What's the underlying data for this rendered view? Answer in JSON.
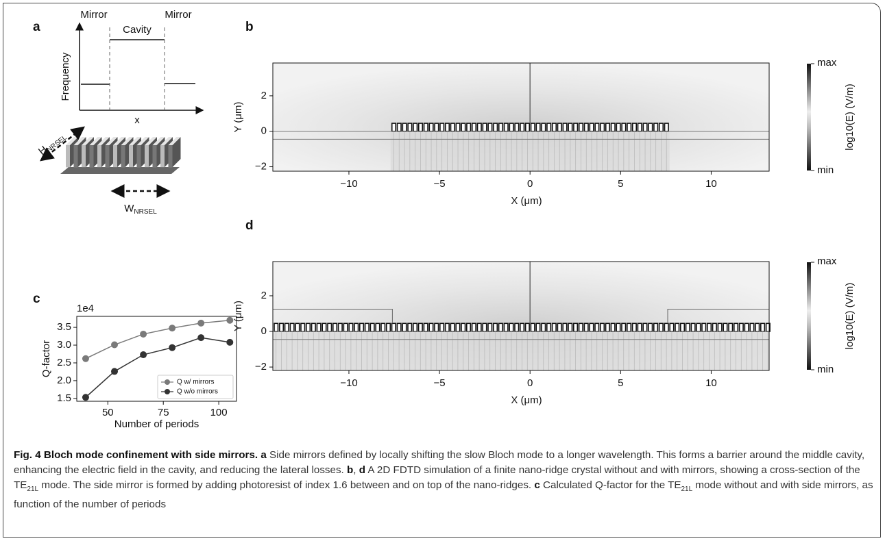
{
  "panel_a": {
    "letter": "a",
    "mirror_left": "Mirror",
    "mirror_right": "Mirror",
    "cavity": "Cavity",
    "y_label": "Frequency",
    "x_label": "x",
    "height_label": "H",
    "height_sub": "NRSEL",
    "width_label": "W",
    "width_sub": "NRSEL"
  },
  "panel_b": {
    "letter": "b",
    "x_label": "X (μm)",
    "y_label": "Y (μm)",
    "xlim": [
      -14.2,
      13.2
    ],
    "xticks": [
      {
        "value": -10,
        "label": "−10"
      },
      {
        "value": -5,
        "label": "−5"
      },
      0,
      5,
      10
    ],
    "ylim": [
      -2.25,
      3.85
    ],
    "yticks": [
      {
        "value": -2,
        "label": "−2"
      },
      0,
      2
    ],
    "colorbar": {
      "max": "max",
      "min": "min",
      "label": "log10(E) (V/m)"
    },
    "mirrors": false
  },
  "panel_c": {
    "type": "line",
    "letter": "c",
    "offset_label": "1e4",
    "x_label": "Number of periods",
    "y_label": "Q-factor",
    "x": [
      40,
      53,
      66,
      79,
      92,
      105
    ],
    "xlim": [
      36,
      108
    ],
    "xticks": [
      50,
      75,
      100
    ],
    "ylim": [
      1.42,
      3.81
    ],
    "yticks": [
      1.5,
      {
        "value": 2,
        "label": "2.0"
      },
      2.5,
      {
        "value": 3,
        "label": "3.0"
      },
      3.5
    ],
    "legend": "lower right",
    "series": [
      {
        "name": "Q w/ mirrors",
        "color": "#7a7a7a",
        "values": [
          2.62,
          3.01,
          3.31,
          3.48,
          3.62,
          3.7
        ]
      },
      {
        "name": "Q w/o mirrors",
        "color": "#333333",
        "values": [
          1.53,
          2.26,
          2.73,
          2.93,
          3.21,
          3.08
        ]
      }
    ]
  },
  "panel_d": {
    "letter": "d",
    "x_label": "X (μm)",
    "y_label": "Y (μm)",
    "xlim": [
      -14.2,
      13.2
    ],
    "xticks": [
      {
        "value": -10,
        "label": "−10"
      },
      {
        "value": -5,
        "label": "−5"
      },
      0,
      5,
      10
    ],
    "ylim": [
      -2.19,
      3.92
    ],
    "yticks": [
      {
        "value": -2,
        "label": "−2"
      },
      0,
      2
    ],
    "colorbar": {
      "max": "max",
      "min": "min",
      "label": "log10(E) (V/m)"
    },
    "mirrors": true
  },
  "caption": [
    "Fig. 4 Bloch mode confinement with side mirrors.",
    "a",
    " Side mirrors defined by locally shifting the slow Bloch mode to a longer wavelength. This forms a barrier around the middle cavity, enhancing the electric field in the cavity, and reducing the lateral losses. ",
    "b",
    ", ",
    "d",
    " A 2D FDTD simulation of a finite nano-ridge crystal without and with mirrors, showing a cross-section of the TE",
    "21L",
    " mode. The side mirror is formed by adding photoresist of index 1.6 between and on top of the nano-ridges. ",
    "c",
    " Calculated Q-factor for the TE",
    "21L",
    " mode without and with side mirrors, as function of the number of periods"
  ]
}
